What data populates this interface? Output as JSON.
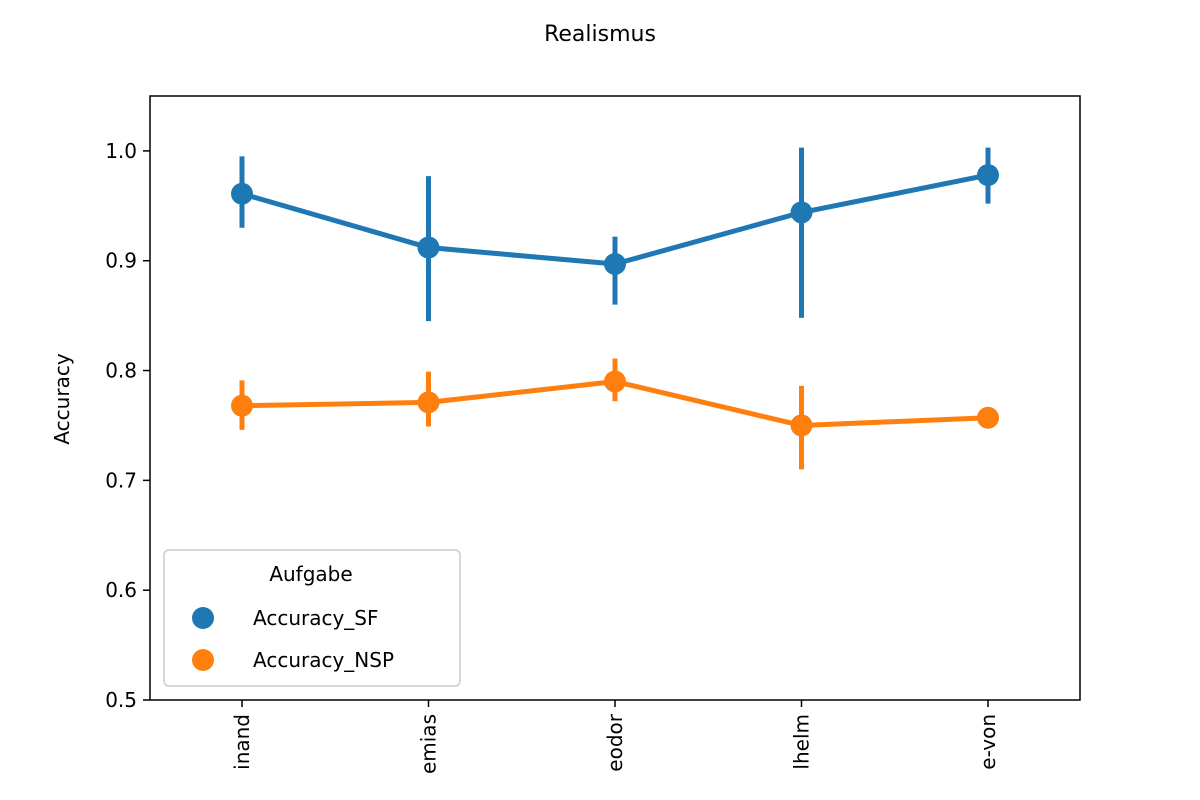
{
  "chart_data": {
    "type": "line",
    "title": "Realismus",
    "xlabel": "",
    "ylabel": "Accuracy",
    "categories": [
      "inand",
      "emias",
      "eodor",
      "lhelm",
      "e-von"
    ],
    "ylim": [
      0.5,
      1.05
    ],
    "yticks": [
      "0.5",
      "0.6",
      "0.7",
      "0.8",
      "0.9",
      "1.0"
    ],
    "grid": false,
    "legend": {
      "title": "Aufgabe",
      "position": "lower-left"
    },
    "series": [
      {
        "name": "Accuracy_SF",
        "color": "#1f77b4",
        "values": [
          0.961,
          0.912,
          0.897,
          0.944,
          0.978
        ],
        "err_low": [
          0.93,
          0.845,
          0.86,
          0.848,
          0.952
        ],
        "err_high": [
          0.995,
          0.977,
          0.922,
          1.003,
          1.003
        ]
      },
      {
        "name": "Accuracy_NSP",
        "color": "#ff7f0e",
        "values": [
          0.768,
          0.771,
          0.79,
          0.75,
          0.757
        ],
        "err_low": [
          0.746,
          0.749,
          0.772,
          0.71,
          0.757
        ],
        "err_high": [
          0.791,
          0.799,
          0.811,
          0.786,
          0.757
        ]
      }
    ]
  }
}
